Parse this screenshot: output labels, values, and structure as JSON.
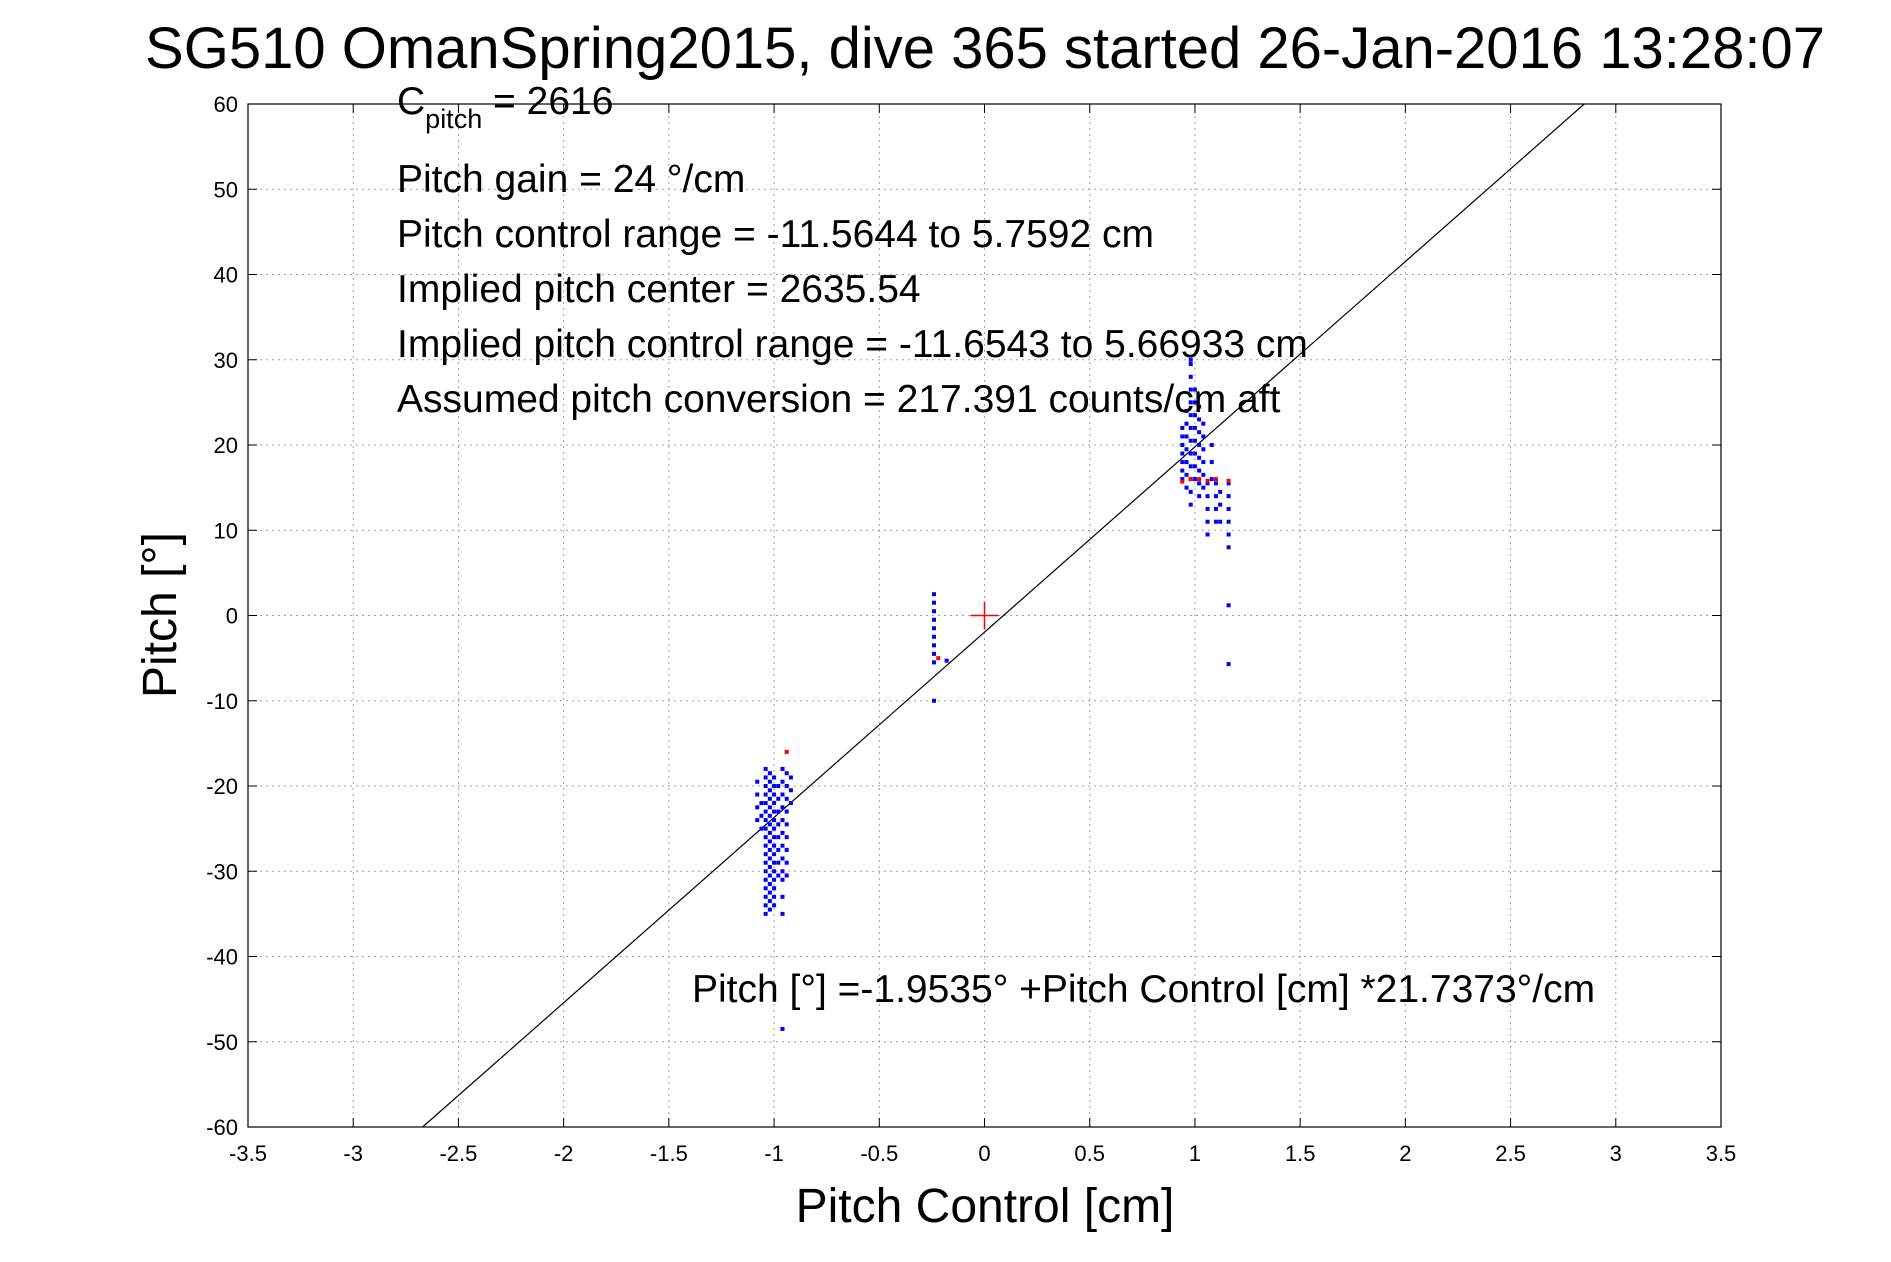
{
  "chart_data": {
    "type": "scatter",
    "title": "SG510 OmanSpring2015, dive 365 started 26-Jan-2016 13:28:07",
    "xlabel": "Pitch Control [cm]",
    "ylabel": "Pitch [°]",
    "xlim": [
      -3.5,
      3.5
    ],
    "ylim": [
      -60,
      60
    ],
    "xticks": [
      -3.5,
      -3,
      -2.5,
      -2,
      -1.5,
      -1,
      -0.5,
      0,
      0.5,
      1,
      1.5,
      2,
      2.5,
      3,
      3.5
    ],
    "xtick_labels": [
      "-3.5",
      "-3",
      "-2.5",
      "-2",
      "-1.5",
      "-1",
      "-0.5",
      "0",
      "0.5",
      "1",
      "1.5",
      "2",
      "2.5",
      "3",
      "3.5"
    ],
    "yticks": [
      -60,
      -50,
      -40,
      -30,
      -20,
      -10,
      0,
      10,
      20,
      30,
      40,
      50,
      60
    ],
    "ytick_labels": [
      "-60",
      "-50",
      "-40",
      "-30",
      "-20",
      "-10",
      "0",
      "10",
      "20",
      "30",
      "40",
      "50",
      "60"
    ],
    "grid": true,
    "colors": {
      "good_points": "#0000ff",
      "flagged_points": "#ff0000",
      "fit_line": "#000000",
      "center_marker": "#ff0000"
    },
    "annotations": {
      "c_pitch_main": "C",
      "c_pitch_sub": "pitch",
      "c_pitch_value": " = 2616",
      "pitch_gain": "Pitch gain = 24 °/cm",
      "control_range": "Pitch control range = -11.5644 to 5.7592 cm",
      "implied_center": "Implied pitch center = 2635.54",
      "implied_range": "Implied pitch control range = -11.6543 to 5.66933 cm",
      "conversion": "Assumed pitch conversion = 217.391 counts/cm aft",
      "fit_equation": "Pitch [°] =-1.9535° +Pitch Control [cm] *21.7373°/cm"
    },
    "fit_line": {
      "intercept": -1.9535,
      "slope": 21.7373
    },
    "center_marker": {
      "x": 0,
      "y": 0
    },
    "series": [
      {
        "color": "#0000ff",
        "clusters": [
          {
            "x": -1.08,
            "y": [
              -19.5,
              -21,
              -22.5,
              -24
            ]
          },
          {
            "x": -1.06,
            "y": [
              -22,
              -23.5,
              -25
            ]
          },
          {
            "x": -1.04,
            "y": [
              -18,
              -19,
              -20,
              -21,
              -22,
              -23,
              -24,
              -25,
              -26,
              -27,
              -28,
              -29,
              -30,
              -31,
              -32,
              -33,
              -34,
              -35
            ]
          },
          {
            "x": -1.02,
            "y": [
              -18.5,
              -19.5,
              -20.5,
              -21.5,
              -22.5,
              -23.5,
              -24.5,
              -25.5,
              -26.5,
              -27.5,
              -28.5,
              -29.5,
              -30.5,
              -31.5,
              -32.5,
              -33.5,
              -34.5
            ]
          },
          {
            "x": -1.0,
            "y": [
              -19,
              -20,
              -21,
              -22,
              -23,
              -24,
              -25,
              -26,
              -27,
              -28,
              -29,
              -30,
              -31,
              -32,
              -33,
              -34
            ]
          },
          {
            "x": -0.98,
            "y": [
              -20,
              -21.5,
              -23,
              -24.5,
              -26,
              -27.5,
              -29,
              -30.5
            ]
          },
          {
            "x": -0.96,
            "y": [
              -18,
              -19.5,
              -21,
              -22.5,
              -24,
              -25.5,
              -27,
              -28.5,
              -30,
              -31,
              -33,
              -35,
              -48.5
            ]
          },
          {
            "x": -0.94,
            "y": [
              -18.5,
              -20,
              -21.5,
              -23,
              -24.5,
              -26,
              -27.5,
              -29,
              -30.5
            ]
          },
          {
            "x": -0.92,
            "y": [
              -19,
              -20.5,
              -22
            ]
          },
          {
            "x": -0.24,
            "y": [
              2.5,
              1.5,
              0.5,
              -0.5,
              -1.5,
              -2.5,
              -3.5,
              -4.5,
              -5.5,
              -10
            ]
          },
          {
            "x": -0.18,
            "y": [
              -5.3
            ]
          },
          {
            "x": 0.94,
            "y": [
              16,
              17,
              18,
              19,
              20,
              21,
              22
            ]
          },
          {
            "x": 0.96,
            "y": [
              15,
              16.5,
              18,
              19.5,
              21,
              22.5,
              24
            ]
          },
          {
            "x": 0.98,
            "y": [
              13,
              14.5,
              16,
              17.5,
              19,
              20.5,
              22,
              23.5,
              25,
              26.5,
              28,
              29.5,
              30
            ]
          },
          {
            "x": 1.0,
            "y": [
              16,
              17.5,
              19,
              20.5,
              22,
              23.5,
              25,
              26.5
            ]
          },
          {
            "x": 1.02,
            "y": [
              14,
              15.5,
              17,
              18.5,
              20,
              21.5,
              23,
              24.5
            ]
          },
          {
            "x": 1.04,
            "y": [
              15,
              16.5,
              18,
              19.5,
              21,
              22.5
            ]
          },
          {
            "x": 1.06,
            "y": [
              9.5,
              11,
              12.5,
              14,
              15.5
            ]
          },
          {
            "x": 1.08,
            "y": [
              16,
              18,
              20
            ]
          },
          {
            "x": 1.1,
            "y": [
              11,
              12.5,
              14,
              15.5
            ]
          },
          {
            "x": 1.12,
            "y": [
              11,
              13,
              14.5
            ]
          },
          {
            "x": 1.16,
            "y": [
              8,
              9.5,
              11,
              12.5,
              14,
              15.5,
              1.2,
              -5.7
            ]
          }
        ]
      },
      {
        "color": "#ff0000",
        "points": [
          [
            -0.94,
            -16
          ],
          [
            -0.22,
            -5
          ],
          [
            0.98,
            16
          ],
          [
            1.02,
            16
          ],
          [
            1.06,
            15.8
          ],
          [
            1.1,
            16
          ],
          [
            1.16,
            15.8
          ],
          [
            0.94,
            15.7
          ]
        ]
      }
    ]
  }
}
